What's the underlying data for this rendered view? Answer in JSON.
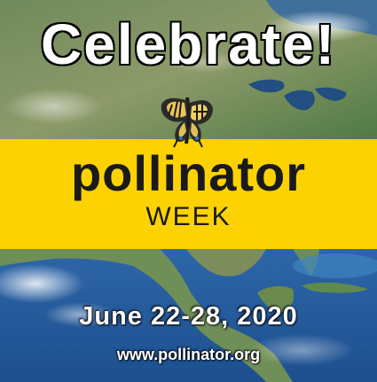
{
  "poster": {
    "headline": "Celebrate!",
    "brand": "pollinator",
    "subbrand": "WEEK",
    "dates": "June 22-28, 2020",
    "url": "www.pollinator.org"
  },
  "colors": {
    "band": "#fdd202",
    "text_dark": "#1a1a1a",
    "text_light": "#ffffff"
  },
  "icons": [
    "butterfly-icon"
  ]
}
